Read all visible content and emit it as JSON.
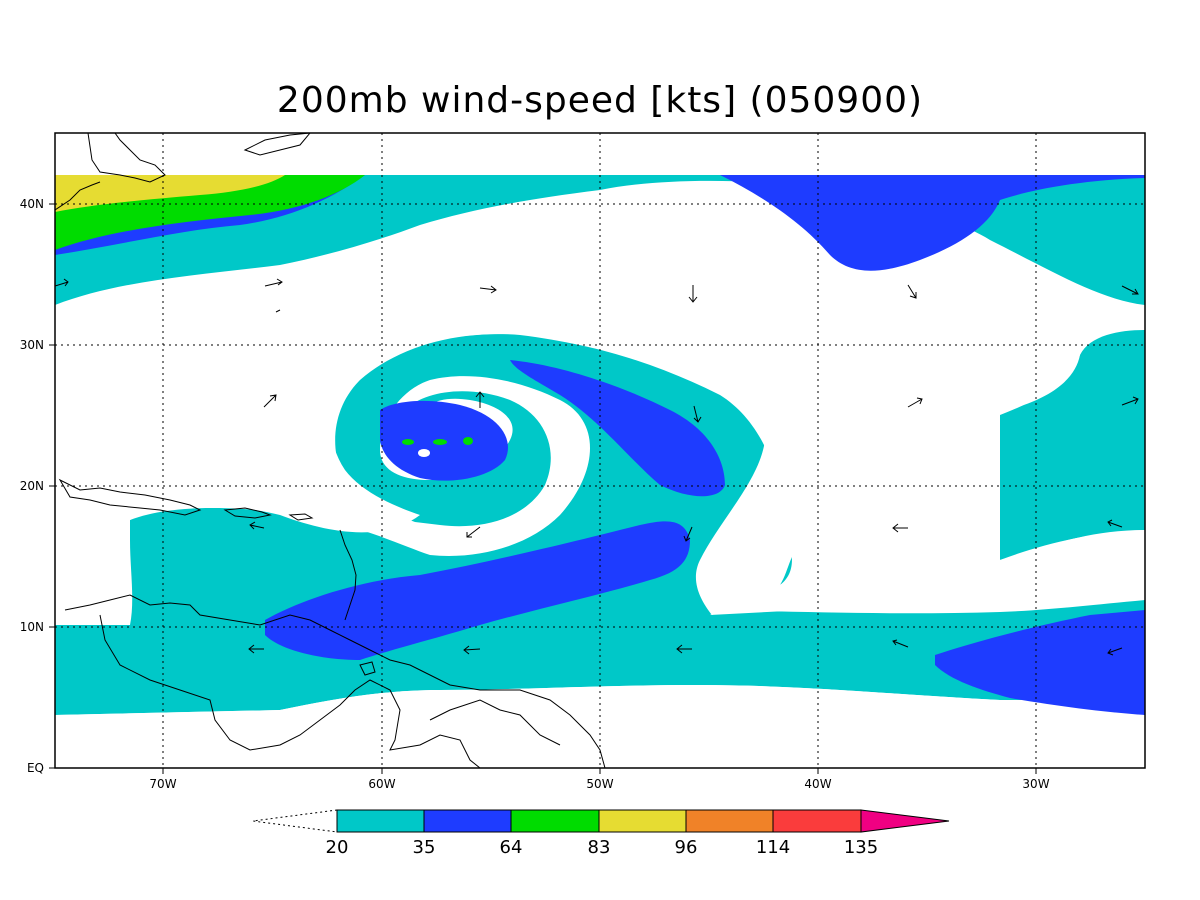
{
  "title": "200mb wind-speed [kts] (050900)",
  "map": {
    "lon_range": [
      -75,
      -25
    ],
    "lat_range": [
      0,
      45
    ],
    "lat_ticks": [
      {
        "label": "EQ",
        "value": 0
      },
      {
        "label": "10N",
        "value": 10
      },
      {
        "label": "20N",
        "value": 20
      },
      {
        "label": "30N",
        "value": 30
      },
      {
        "label": "40N",
        "value": 40
      }
    ],
    "lon_ticks": [
      {
        "label": "70W",
        "value": -70
      },
      {
        "label": "60W",
        "value": -60
      },
      {
        "label": "50W",
        "value": -50
      },
      {
        "label": "40W",
        "value": -40
      },
      {
        "label": "30W",
        "value": -30
      }
    ],
    "colors": {
      "c20": "#00c8c8",
      "c35": "#1e3cff",
      "c64": "#00dc00",
      "c83": "#e6dc32",
      "c96": "#f08228",
      "c114": "#fa3c3c",
      "c135": "#f00082"
    }
  },
  "colorbar": {
    "labels": [
      "20",
      "35",
      "64",
      "83",
      "96",
      "114",
      "135"
    ],
    "colors": [
      "#00c8c8",
      "#1e3cff",
      "#00dc00",
      "#e6dc32",
      "#f08228",
      "#fa3c3c",
      "#f00082"
    ]
  }
}
